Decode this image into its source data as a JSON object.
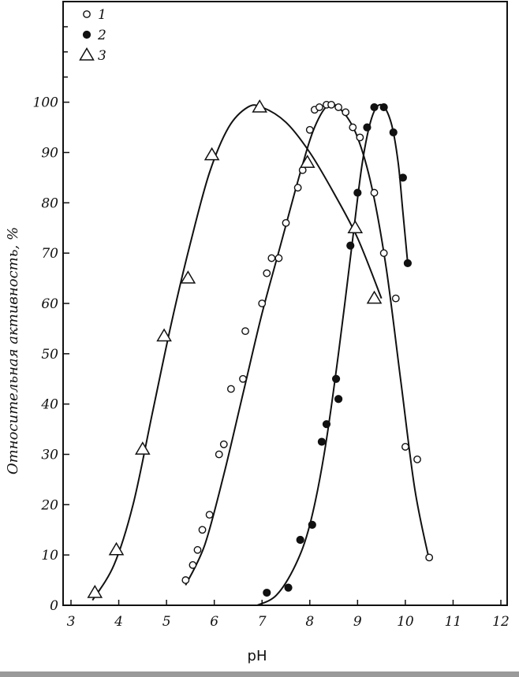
{
  "chart_data": {
    "type": "scatter",
    "xlabel": "pH",
    "ylabel": "Относительная активность, %",
    "xlim": [
      3,
      12
    ],
    "ylim": [
      0,
      120
    ],
    "x_ticks": [
      3,
      4,
      5,
      6,
      7,
      8,
      9,
      10,
      11,
      12
    ],
    "x_tick_labels": [
      "3",
      "4",
      "5",
      "6",
      "7",
      "8",
      "9",
      "10",
      "11",
      "12"
    ],
    "y_ticks": [
      0,
      10,
      20,
      30,
      40,
      50,
      60,
      70,
      80,
      90,
      100
    ],
    "y_tick_labels": [
      "0",
      "10",
      "20",
      "30",
      "40",
      "50",
      "60",
      "70",
      "80",
      "90",
      "100"
    ],
    "grid": false,
    "legend_position": "top-left",
    "series": [
      {
        "name": "1",
        "marker": "open-circle",
        "points": [
          [
            5.4,
            5
          ],
          [
            5.55,
            8
          ],
          [
            5.65,
            11
          ],
          [
            5.75,
            15
          ],
          [
            5.9,
            18
          ],
          [
            6.1,
            30
          ],
          [
            6.2,
            32
          ],
          [
            6.35,
            43
          ],
          [
            6.6,
            45
          ],
          [
            6.65,
            54.5
          ],
          [
            7.0,
            60
          ],
          [
            7.1,
            66
          ],
          [
            7.2,
            69
          ],
          [
            7.35,
            69
          ],
          [
            7.5,
            76
          ],
          [
            7.75,
            83
          ],
          [
            7.85,
            86.5
          ],
          [
            8.0,
            94.5
          ],
          [
            8.1,
            98.5
          ],
          [
            8.2,
            99
          ],
          [
            8.35,
            99.5
          ],
          [
            8.45,
            99.5
          ],
          [
            8.6,
            99
          ],
          [
            8.75,
            98
          ],
          [
            8.9,
            95
          ],
          [
            9.05,
            93
          ],
          [
            9.35,
            82
          ],
          [
            9.55,
            70
          ],
          [
            9.8,
            61
          ],
          [
            10.0,
            31.5
          ],
          [
            10.25,
            29
          ],
          [
            10.5,
            9.5
          ]
        ],
        "curve": [
          [
            5.4,
            4
          ],
          [
            5.8,
            12
          ],
          [
            6.2,
            26
          ],
          [
            6.6,
            42
          ],
          [
            7.0,
            58
          ],
          [
            7.4,
            72
          ],
          [
            7.8,
            86
          ],
          [
            8.1,
            95
          ],
          [
            8.4,
            99.5
          ],
          [
            8.7,
            98
          ],
          [
            9.0,
            93
          ],
          [
            9.3,
            83
          ],
          [
            9.6,
            67
          ],
          [
            9.9,
            45
          ],
          [
            10.2,
            23
          ],
          [
            10.5,
            9
          ]
        ]
      },
      {
        "name": "2",
        "marker": "filled-circle",
        "points": [
          [
            7.1,
            2.5
          ],
          [
            7.55,
            3.5
          ],
          [
            7.8,
            13
          ],
          [
            8.05,
            16
          ],
          [
            8.25,
            32.5
          ],
          [
            8.35,
            36
          ],
          [
            8.55,
            45
          ],
          [
            8.6,
            41
          ],
          [
            8.85,
            71.5
          ],
          [
            9.0,
            82
          ],
          [
            9.2,
            95
          ],
          [
            9.35,
            99
          ],
          [
            9.55,
            99
          ],
          [
            9.75,
            94
          ],
          [
            9.95,
            85
          ],
          [
            10.05,
            68
          ]
        ],
        "curve": [
          [
            6.9,
            0
          ],
          [
            7.3,
            2
          ],
          [
            7.7,
            8
          ],
          [
            8.0,
            16
          ],
          [
            8.3,
            30
          ],
          [
            8.6,
            50
          ],
          [
            8.9,
            73
          ],
          [
            9.1,
            88
          ],
          [
            9.3,
            97
          ],
          [
            9.5,
            99.5
          ],
          [
            9.7,
            96
          ],
          [
            9.85,
            88
          ],
          [
            9.95,
            78
          ],
          [
            10.05,
            68
          ]
        ]
      },
      {
        "name": "3",
        "marker": "open-triangle",
        "points": [
          [
            3.5,
            2.5
          ],
          [
            3.95,
            11
          ],
          [
            4.5,
            31
          ],
          [
            4.95,
            53.5
          ],
          [
            5.45,
            65
          ],
          [
            5.95,
            89.5
          ],
          [
            6.95,
            99
          ],
          [
            7.95,
            88
          ],
          [
            8.95,
            75
          ],
          [
            9.35,
            61
          ]
        ],
        "curve": [
          [
            3.45,
            1
          ],
          [
            3.9,
            8
          ],
          [
            4.3,
            20
          ],
          [
            4.7,
            38
          ],
          [
            5.1,
            56
          ],
          [
            5.5,
            72
          ],
          [
            5.9,
            86
          ],
          [
            6.3,
            95
          ],
          [
            6.7,
            99
          ],
          [
            7.0,
            99
          ],
          [
            7.5,
            96
          ],
          [
            8.0,
            90
          ],
          [
            8.5,
            82
          ],
          [
            9.0,
            73
          ],
          [
            9.5,
            61
          ]
        ]
      }
    ]
  }
}
